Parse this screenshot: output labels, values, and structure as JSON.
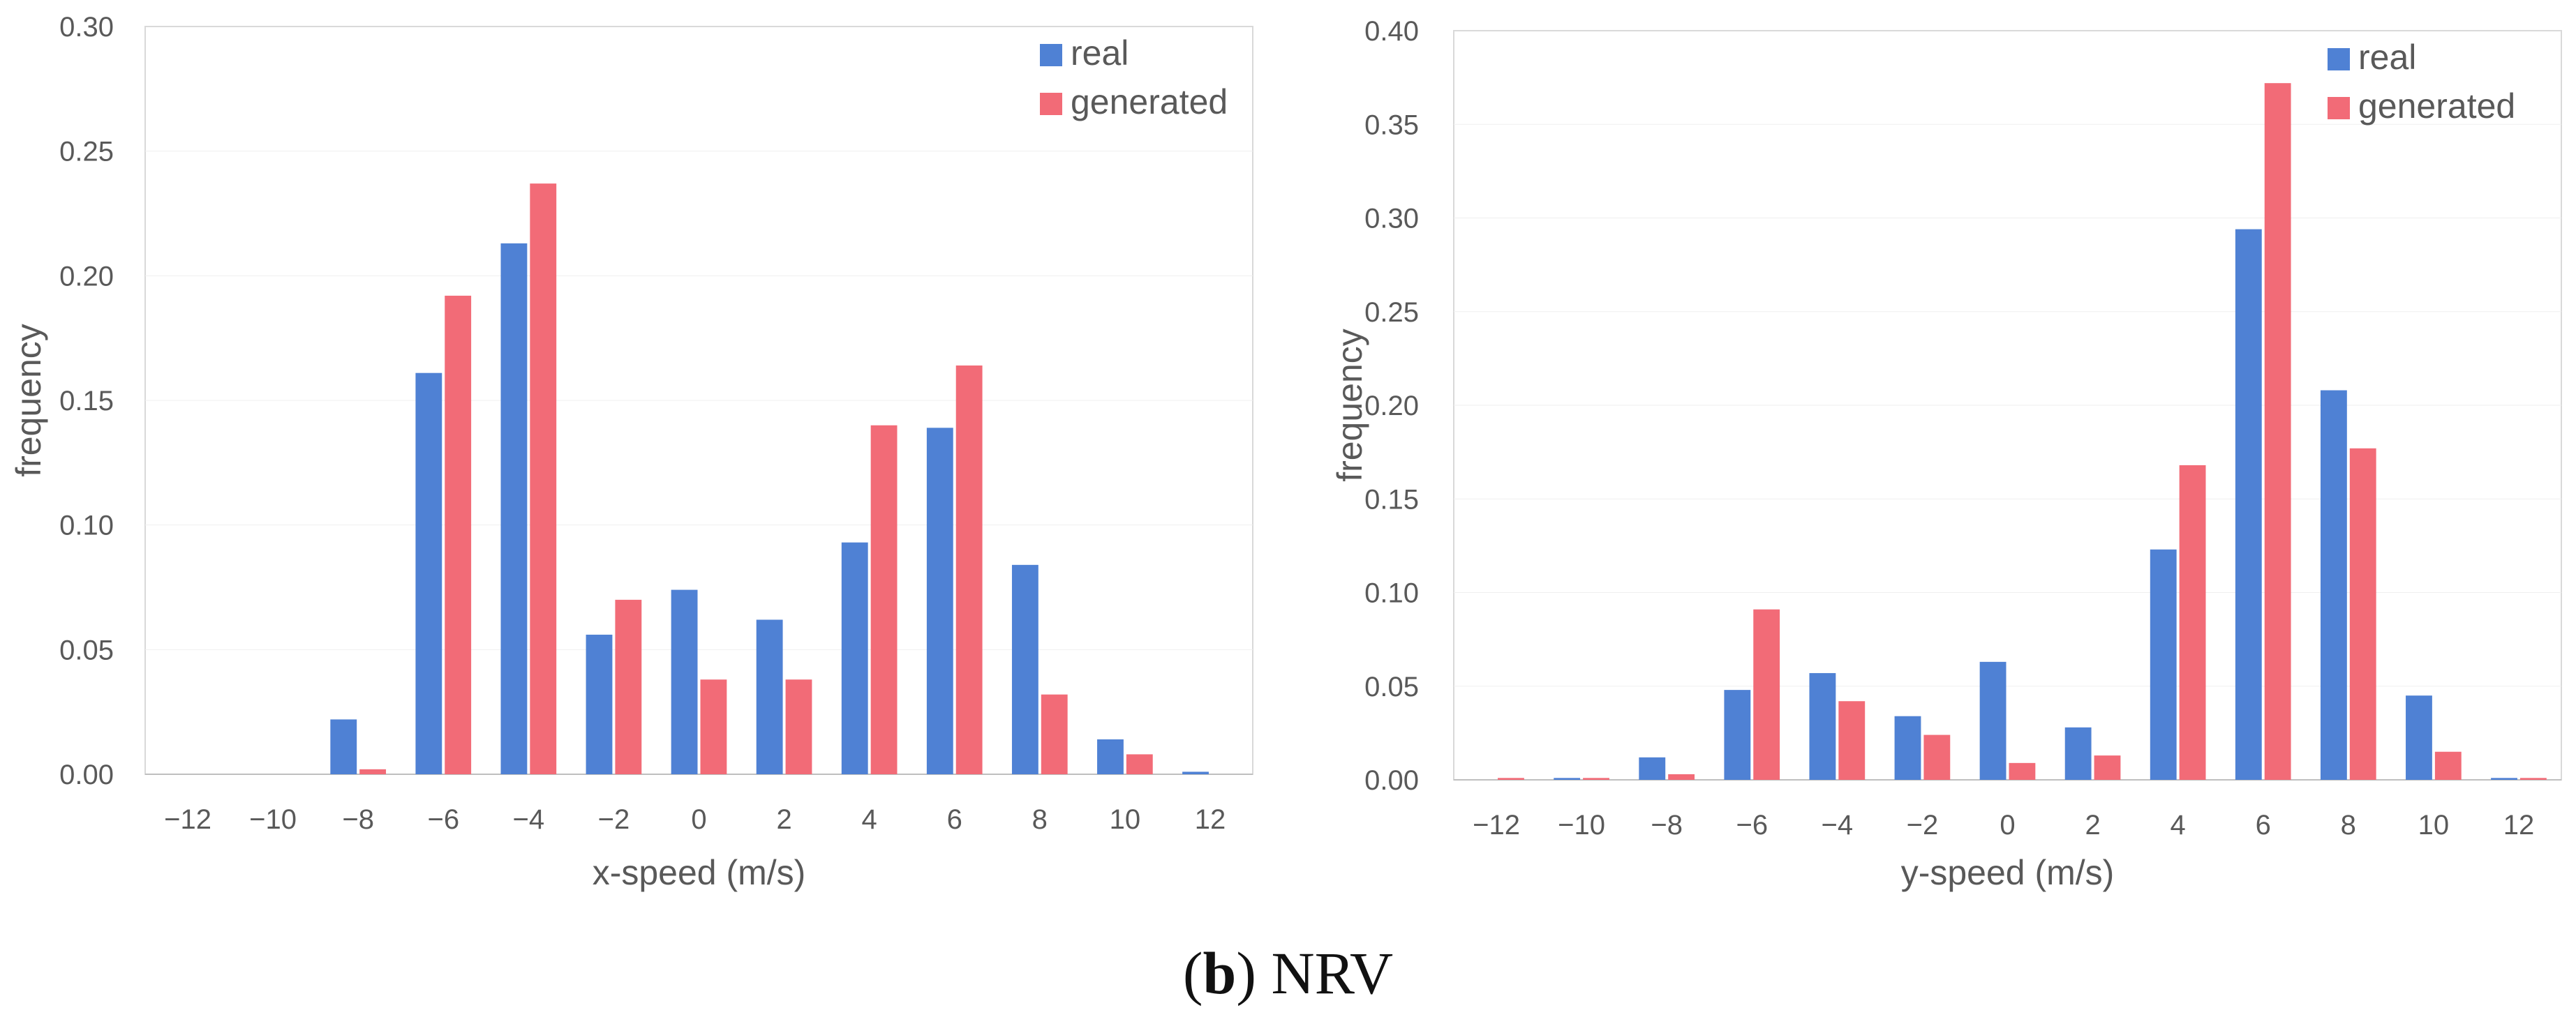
{
  "caption": {
    "label": "b",
    "text": "NRV"
  },
  "colors": {
    "real": "#4f81d4",
    "generated": "#f26b77",
    "grid": "#d9d9d9",
    "text": "#595959"
  },
  "chart_data": [
    {
      "type": "bar",
      "xlabel": "x-speed (m/s)",
      "ylabel": "frequency",
      "ylim": [
        0,
        0.3
      ],
      "yticks": [
        "0.00",
        "0.05",
        "0.10",
        "0.15",
        "0.20",
        "0.25",
        "0.30"
      ],
      "categories": [
        "−12",
        "−10",
        "−8",
        "−6",
        "−4",
        "−2",
        "0",
        "2",
        "4",
        "6",
        "8",
        "10",
        "12"
      ],
      "legend_position": "top-right",
      "series": [
        {
          "name": "real",
          "values": [
            0,
            0,
            0.022,
            0.161,
            0.213,
            0.056,
            0.074,
            0.062,
            0.093,
            0.139,
            0.084,
            0.014,
            0.001
          ]
        },
        {
          "name": "generated",
          "values": [
            0,
            0,
            0.002,
            0.192,
            0.237,
            0.07,
            0.038,
            0.038,
            0.14,
            0.164,
            0.032,
            0.008,
            0
          ]
        }
      ]
    },
    {
      "type": "bar",
      "xlabel": "y-speed (m/s)",
      "ylabel": "frequency",
      "ylim": [
        0,
        0.4
      ],
      "yticks": [
        "0.00",
        "0.05",
        "0.10",
        "0.15",
        "0.20",
        "0.25",
        "0.30",
        "0.35",
        "0.40"
      ],
      "categories": [
        "−12",
        "−10",
        "−8",
        "−6",
        "−4",
        "−2",
        "0",
        "2",
        "4",
        "6",
        "8",
        "10",
        "12"
      ],
      "legend_position": "top-right",
      "series": [
        {
          "name": "real",
          "values": [
            0,
            0.001,
            0.012,
            0.048,
            0.057,
            0.034,
            0.063,
            0.028,
            0.123,
            0.294,
            0.208,
            0.045,
            0.001
          ]
        },
        {
          "name": "generated",
          "values": [
            0.001,
            0.001,
            0.003,
            0.091,
            0.042,
            0.024,
            0.009,
            0.013,
            0.168,
            0.372,
            0.177,
            0.015,
            0.001
          ]
        }
      ]
    }
  ]
}
